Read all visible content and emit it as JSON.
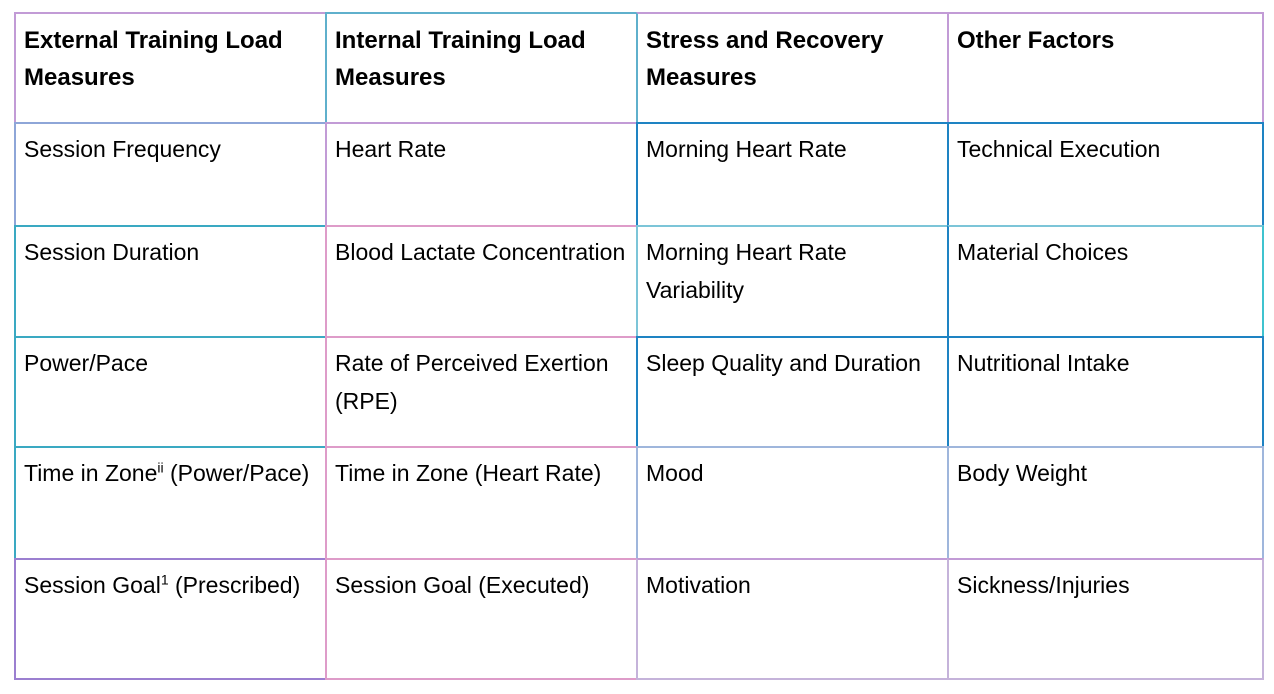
{
  "page": {
    "background": "#ffffff",
    "text_color": "#000000"
  },
  "palette": {
    "lavender": "#c29bd6",
    "purple": "#9b7fd0",
    "cyan_muted": "#5fb0cc",
    "teal": "#3aa9c2",
    "turquoise": "#3fc3cf",
    "blue": "#1e83c3",
    "pink": "#de9cc9",
    "light_cyan": "#7cc5d8",
    "light_blue": "#9fb6dc",
    "blue_lavender": "#8ea6d8",
    "light_lavender": "#c5b3da"
  },
  "table": {
    "column_headers": [
      "External Training Load Measures",
      "Internal Training Load Measures",
      "Stress and Recovery Measures",
      "Other Factors"
    ],
    "rows": [
      {
        "header": true,
        "cells": [
          {
            "pre": "External Training Load Measures",
            "borders": {
              "top": "lavender",
              "left": "lavender"
            }
          },
          {
            "pre": "Internal Training Load Measures",
            "borders": {
              "top": "cyan_muted",
              "left": "cyan_muted"
            }
          },
          {
            "pre": "Stress and Recovery Measures",
            "borders": {
              "top": "lavender",
              "left": "cyan_muted"
            }
          },
          {
            "pre": "Other Factors",
            "borders": {
              "top": "lavender",
              "left": "lavender",
              "right": "lavender"
            }
          }
        ]
      },
      {
        "header": false,
        "cells": [
          {
            "pre": "Session Frequency",
            "borders": {
              "top": "blue_lavender",
              "left": "blue_lavender"
            }
          },
          {
            "pre": "Heart Rate",
            "borders": {
              "top": "lavender",
              "left": "lavender"
            }
          },
          {
            "pre": "Morning Heart Rate",
            "borders": {
              "top": "blue",
              "left": "blue"
            }
          },
          {
            "pre": "Technical Execution",
            "borders": {
              "top": "blue",
              "left": "blue",
              "right": "blue"
            }
          }
        ]
      },
      {
        "header": false,
        "cells": [
          {
            "pre": "Session Duration",
            "borders": {
              "top": "teal",
              "left": "teal"
            }
          },
          {
            "pre": "Blood Lactate Concentration",
            "borders": {
              "top": "pink",
              "left": "pink"
            }
          },
          {
            "pre": "Morning Heart Rate Variability",
            "borders": {
              "top": "light_cyan",
              "left": "light_cyan"
            }
          },
          {
            "pre": "Material Choices",
            "borders": {
              "top": "light_cyan",
              "left": "blue",
              "right": "turquoise"
            }
          }
        ]
      },
      {
        "header": false,
        "cells": [
          {
            "pre": "Power/Pace",
            "borders": {
              "top": "teal",
              "left": "teal"
            }
          },
          {
            "pre": "Rate of Perceived Exertion (RPE)",
            "borders": {
              "top": "pink",
              "left": "pink"
            }
          },
          {
            "pre": "Sleep Quality and Duration",
            "borders": {
              "top": "blue",
              "left": "blue"
            }
          },
          {
            "pre": "Nutritional Intake",
            "borders": {
              "top": "blue",
              "left": "blue",
              "right": "blue"
            }
          }
        ]
      },
      {
        "header": false,
        "cells": [
          {
            "pre": "Time in Zone",
            "sup": "ii",
            "post": " (Power/Pace)",
            "borders": {
              "top": "teal",
              "left": "teal"
            }
          },
          {
            "pre": "Time in Zone (Heart Rate)",
            "borders": {
              "top": "pink",
              "left": "pink"
            }
          },
          {
            "pre": "Mood",
            "borders": {
              "top": "light_blue",
              "left": "light_blue"
            }
          },
          {
            "pre": "Body Weight",
            "borders": {
              "top": "light_blue",
              "left": "light_blue",
              "right": "light_blue"
            }
          }
        ]
      },
      {
        "header": false,
        "cells": [
          {
            "pre": "Session Goal",
            "sup": "1",
            "post": " (Prescribed)",
            "borders": {
              "top": "purple",
              "left": "purple",
              "bottom": "purple"
            }
          },
          {
            "pre": "Session Goal (Executed)",
            "borders": {
              "top": "pink",
              "left": "pink",
              "bottom": "pink"
            }
          },
          {
            "pre": "Motivation",
            "borders": {
              "top": "lavender",
              "left": "light_lavender",
              "bottom": "light_lavender"
            }
          },
          {
            "pre": "Sickness/Injuries",
            "borders": {
              "top": "lavender",
              "left": "light_lavender",
              "right": "light_lavender",
              "bottom": "light_lavender"
            }
          }
        ]
      }
    ]
  }
}
